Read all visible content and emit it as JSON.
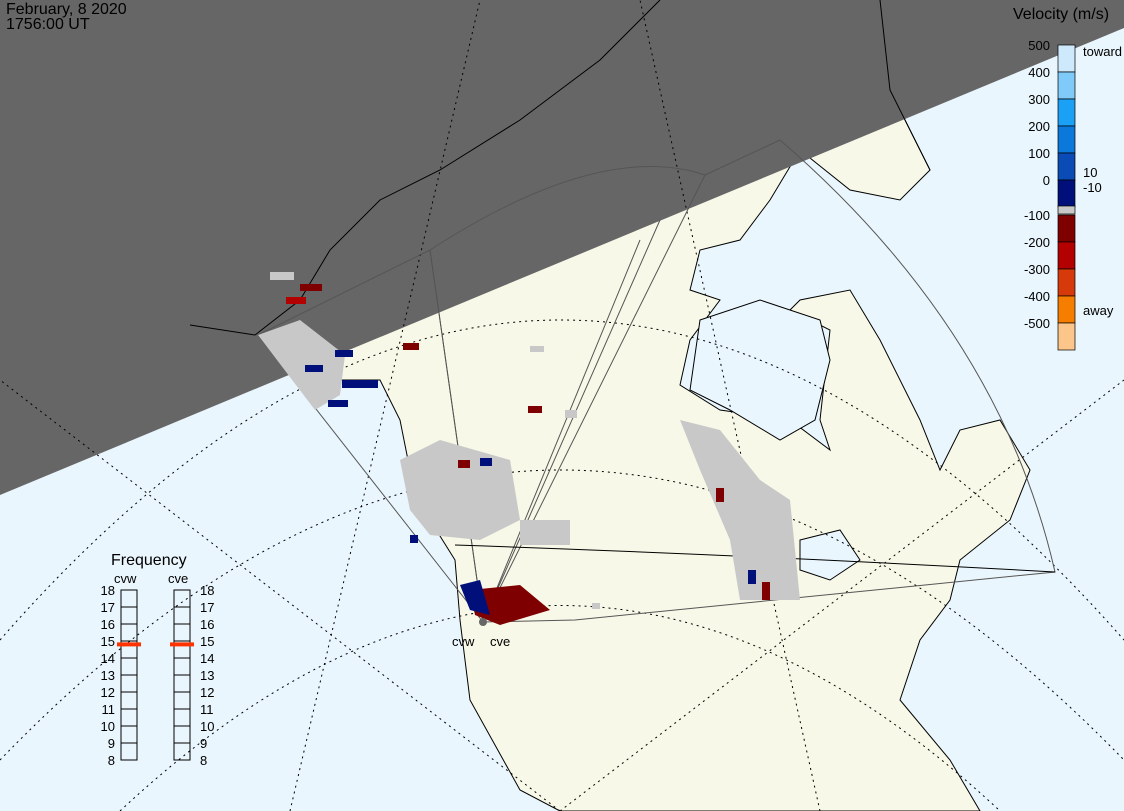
{
  "header": {
    "date": "February, 8 2020",
    "time": "1756:00 UT"
  },
  "colorbar": {
    "title": "Velocity (m/s)",
    "ticks": [
      "500",
      "400",
      "300",
      "200",
      "100",
      "0",
      "-100",
      "-200",
      "-300",
      "-400",
      "-500"
    ],
    "toward_label": "toward",
    "away_label": "away",
    "gs_upper": "10",
    "gs_lower": "-10",
    "colors": [
      "#cde9fb",
      "#7fcaf8",
      "#1aa1f5",
      "#0b78dc",
      "#0a4bb5",
      "#000f7a",
      "#7e0000",
      "#b30000",
      "#d63a0a",
      "#f57e00",
      "#fcc68a"
    ],
    "ground_scatter_color": "#c8c8c8"
  },
  "frequency": {
    "title": "Frequency",
    "radars": [
      {
        "name": "cvw",
        "value_mhz": 14.8
      },
      {
        "name": "cve",
        "value_mhz": 14.8
      }
    ],
    "ticks": [
      "18",
      "17",
      "16",
      "15",
      "14",
      "13",
      "12",
      "11",
      "10",
      "9",
      "8"
    ],
    "marker_color": "#ff3300"
  },
  "map": {
    "radar_labels": [
      "cvw",
      "cve"
    ],
    "ocean_color": "#eaf6fd",
    "land_color": "#f8f8e8",
    "night_color": "#666666"
  }
}
